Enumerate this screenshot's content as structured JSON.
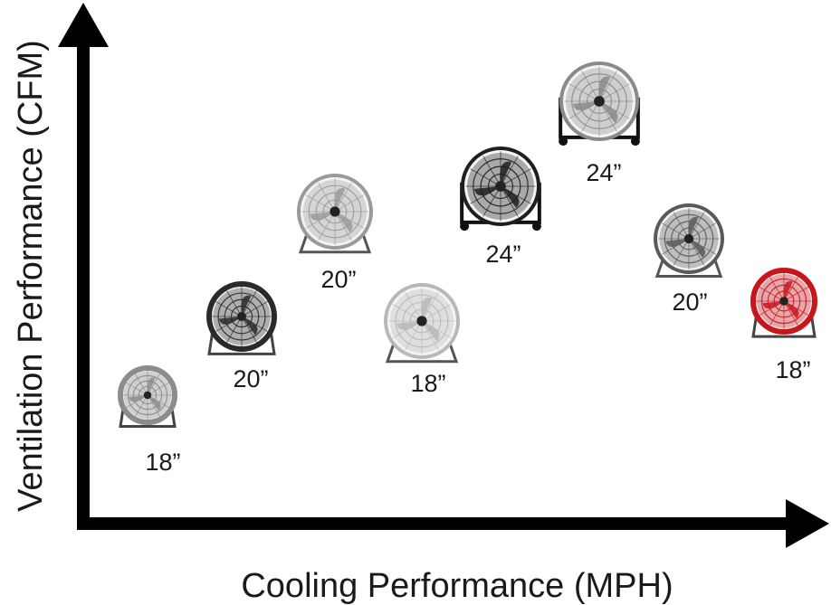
{
  "axes": {
    "x_label": "Cooling Performance (MPH)",
    "y_label": "Ventilation Performance (CFM)"
  },
  "fans": [
    {
      "size_label": "18”",
      "style": "high-velocity drum fan with round guard on tilting stand",
      "color": "#8c8c8c"
    },
    {
      "size_label": "20”",
      "style": "black drum fan with top carry handle",
      "color": "#2a2a2a"
    },
    {
      "size_label": "20”",
      "style": "chrome floor fan on wire stand",
      "color": "#9a9a9a"
    },
    {
      "size_label": "18”",
      "style": "chrome floor fan with side switch",
      "color": "#b8b8b8"
    },
    {
      "size_label": "24”",
      "style": "black drum fan on wheeled stand",
      "color": "#1e1e1e"
    },
    {
      "size_label": "24”",
      "style": "grey drum fan on wheeled stand",
      "color": "#8a8a8a"
    },
    {
      "size_label": "20”",
      "style": "chrome floor fan on wire stand",
      "color": "#5a5a5a"
    },
    {
      "size_label": "18”",
      "style": "red drum fan",
      "color": "#c8161d"
    }
  ]
}
